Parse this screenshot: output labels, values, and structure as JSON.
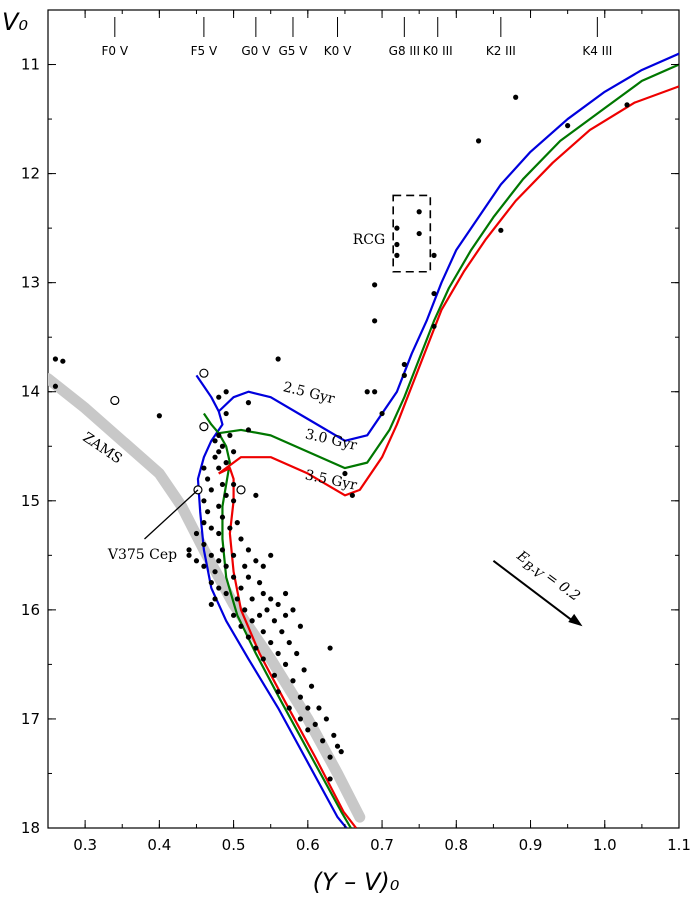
{
  "chart_data": {
    "type": "scatter",
    "xlabel": "(Y – V)₀",
    "ylabel": "V₀",
    "xlim": [
      0.25,
      1.1
    ],
    "ylim": [
      18,
      10.5
    ],
    "y_inverted": true,
    "x_ticks": [
      0.3,
      0.4,
      0.5,
      0.6,
      0.7,
      0.8,
      0.9,
      1.0,
      1.1
    ],
    "x_tick_labels": [
      "0.3",
      "0.4",
      "0.5",
      "0.6",
      "0.7",
      "0.8",
      "0.9",
      "1.0",
      "1.1"
    ],
    "y_ticks": [
      11,
      12,
      13,
      14,
      15,
      16,
      17,
      18
    ],
    "y_tick_labels": [
      "11",
      "12",
      "13",
      "14",
      "15",
      "16",
      "17",
      "18"
    ],
    "grid": false,
    "spectral_types": [
      {
        "label": "F0 V",
        "x": 0.34
      },
      {
        "label": "F5 V",
        "x": 0.46
      },
      {
        "label": "G0 V",
        "x": 0.53
      },
      {
        "label": "G5 V",
        "x": 0.58
      },
      {
        "label": "K0 V",
        "x": 0.64
      },
      {
        "label": "G8 III",
        "x": 0.73
      },
      {
        "label": "K0 III",
        "x": 0.775
      },
      {
        "label": "K2 III",
        "x": 0.86
      },
      {
        "label": "K4 III",
        "x": 0.99
      }
    ],
    "isochrones": [
      {
        "name": "2.5 Gyr",
        "color": "#0000dd",
        "points": [
          [
            0.45,
            13.85
          ],
          [
            0.46,
            13.95
          ],
          [
            0.47,
            14.05
          ],
          [
            0.48,
            14.18
          ],
          [
            0.485,
            14.3
          ],
          [
            0.47,
            14.45
          ],
          [
            0.46,
            14.6
          ],
          [
            0.452,
            14.8
          ],
          [
            0.455,
            15.1
          ],
          [
            0.46,
            15.45
          ],
          [
            0.47,
            15.8
          ],
          [
            0.49,
            16.1
          ],
          [
            0.52,
            16.45
          ],
          [
            0.56,
            16.9
          ],
          [
            0.6,
            17.4
          ],
          [
            0.64,
            17.9
          ],
          [
            0.652,
            18.0
          ]
        ],
        "branch": [
          [
            0.48,
            14.18
          ],
          [
            0.5,
            14.05
          ],
          [
            0.52,
            14.0
          ],
          [
            0.55,
            14.05
          ],
          [
            0.6,
            14.25
          ],
          [
            0.65,
            14.45
          ],
          [
            0.68,
            14.4
          ],
          [
            0.7,
            14.2
          ],
          [
            0.72,
            14.0
          ],
          [
            0.74,
            13.65
          ],
          [
            0.76,
            13.35
          ],
          [
            0.78,
            13.0
          ],
          [
            0.8,
            12.7
          ],
          [
            0.83,
            12.4
          ],
          [
            0.86,
            12.1
          ],
          [
            0.9,
            11.8
          ],
          [
            0.95,
            11.5
          ],
          [
            1.0,
            11.25
          ],
          [
            1.05,
            11.05
          ],
          [
            1.1,
            10.9
          ]
        ]
      },
      {
        "name": "3.0 Gyr",
        "color": "#007700",
        "points": [
          [
            0.46,
            14.2
          ],
          [
            0.47,
            14.3
          ],
          [
            0.48,
            14.38
          ],
          [
            0.49,
            14.5
          ],
          [
            0.495,
            14.65
          ],
          [
            0.49,
            14.85
          ],
          [
            0.485,
            15.05
          ],
          [
            0.485,
            15.35
          ],
          [
            0.49,
            15.7
          ],
          [
            0.505,
            16.05
          ],
          [
            0.53,
            16.4
          ],
          [
            0.565,
            16.85
          ],
          [
            0.605,
            17.35
          ],
          [
            0.645,
            17.85
          ],
          [
            0.658,
            18.0
          ]
        ],
        "branch": [
          [
            0.48,
            14.38
          ],
          [
            0.51,
            14.35
          ],
          [
            0.55,
            14.4
          ],
          [
            0.6,
            14.55
          ],
          [
            0.65,
            14.7
          ],
          [
            0.68,
            14.65
          ],
          [
            0.71,
            14.35
          ],
          [
            0.73,
            14.05
          ],
          [
            0.75,
            13.7
          ],
          [
            0.77,
            13.35
          ],
          [
            0.79,
            13.05
          ],
          [
            0.82,
            12.7
          ],
          [
            0.85,
            12.4
          ],
          [
            0.89,
            12.05
          ],
          [
            0.94,
            11.7
          ],
          [
            1.0,
            11.4
          ],
          [
            1.05,
            11.15
          ],
          [
            1.1,
            11.0
          ]
        ]
      },
      {
        "name": "3.5 Gyr",
        "color": "#ee0000",
        "points": [
          [
            0.48,
            14.75
          ],
          [
            0.495,
            14.7
          ],
          [
            0.5,
            14.8
          ],
          [
            0.5,
            15.0
          ],
          [
            0.495,
            15.3
          ],
          [
            0.5,
            15.65
          ],
          [
            0.51,
            16.0
          ],
          [
            0.535,
            16.4
          ],
          [
            0.57,
            16.85
          ],
          [
            0.61,
            17.35
          ],
          [
            0.648,
            17.85
          ],
          [
            0.665,
            18.0
          ]
        ],
        "branch": [
          [
            0.48,
            14.75
          ],
          [
            0.51,
            14.6
          ],
          [
            0.55,
            14.6
          ],
          [
            0.6,
            14.75
          ],
          [
            0.65,
            14.95
          ],
          [
            0.67,
            14.9
          ],
          [
            0.7,
            14.6
          ],
          [
            0.72,
            14.3
          ],
          [
            0.74,
            13.95
          ],
          [
            0.76,
            13.6
          ],
          [
            0.78,
            13.25
          ],
          [
            0.81,
            12.9
          ],
          [
            0.84,
            12.6
          ],
          [
            0.88,
            12.25
          ],
          [
            0.93,
            11.9
          ],
          [
            0.98,
            11.6
          ],
          [
            1.04,
            11.35
          ],
          [
            1.1,
            11.2
          ]
        ]
      }
    ],
    "zams": [
      [
        0.25,
        13.88
      ],
      [
        0.3,
        14.15
      ],
      [
        0.35,
        14.45
      ],
      [
        0.4,
        14.75
      ],
      [
        0.43,
        15.05
      ],
      [
        0.46,
        15.45
      ],
      [
        0.5,
        15.95
      ],
      [
        0.55,
        16.45
      ],
      [
        0.6,
        17.0
      ],
      [
        0.64,
        17.5
      ],
      [
        0.67,
        17.9
      ]
    ],
    "stars": [
      [
        0.26,
        13.7
      ],
      [
        0.27,
        13.72
      ],
      [
        0.26,
        13.95
      ],
      [
        0.4,
        14.22
      ],
      [
        0.44,
        15.45
      ],
      [
        0.44,
        15.5
      ],
      [
        0.45,
        15.3
      ],
      [
        0.45,
        15.55
      ],
      [
        0.46,
        14.7
      ],
      [
        0.46,
        15.0
      ],
      [
        0.46,
        15.2
      ],
      [
        0.46,
        15.4
      ],
      [
        0.46,
        15.6
      ],
      [
        0.465,
        14.8
      ],
      [
        0.465,
        15.1
      ],
      [
        0.47,
        14.9
      ],
      [
        0.47,
        15.25
      ],
      [
        0.47,
        15.5
      ],
      [
        0.47,
        15.75
      ],
      [
        0.47,
        15.95
      ],
      [
        0.475,
        14.45
      ],
      [
        0.475,
        14.6
      ],
      [
        0.475,
        15.65
      ],
      [
        0.475,
        15.9
      ],
      [
        0.48,
        14.05
      ],
      [
        0.48,
        14.4
      ],
      [
        0.48,
        14.55
      ],
      [
        0.48,
        14.7
      ],
      [
        0.48,
        15.05
      ],
      [
        0.48,
        15.3
      ],
      [
        0.48,
        15.55
      ],
      [
        0.48,
        15.8
      ],
      [
        0.485,
        14.5
      ],
      [
        0.485,
        14.85
      ],
      [
        0.485,
        15.15
      ],
      [
        0.485,
        15.45
      ],
      [
        0.49,
        14.0
      ],
      [
        0.49,
        14.2
      ],
      [
        0.49,
        14.65
      ],
      [
        0.49,
        14.95
      ],
      [
        0.49,
        15.6
      ],
      [
        0.49,
        15.85
      ],
      [
        0.495,
        14.4
      ],
      [
        0.495,
        15.25
      ],
      [
        0.5,
        14.85
      ],
      [
        0.5,
        15.0
      ],
      [
        0.5,
        15.5
      ],
      [
        0.5,
        15.7
      ],
      [
        0.5,
        16.05
      ],
      [
        0.505,
        15.2
      ],
      [
        0.505,
        15.9
      ],
      [
        0.51,
        15.35
      ],
      [
        0.51,
        15.8
      ],
      [
        0.51,
        16.15
      ],
      [
        0.515,
        15.6
      ],
      [
        0.515,
        16.0
      ],
      [
        0.52,
        15.45
      ],
      [
        0.52,
        15.7
      ],
      [
        0.52,
        16.25
      ],
      [
        0.525,
        15.9
      ],
      [
        0.525,
        16.1
      ],
      [
        0.53,
        14.95
      ],
      [
        0.53,
        15.55
      ],
      [
        0.53,
        16.35
      ],
      [
        0.535,
        15.75
      ],
      [
        0.535,
        16.05
      ],
      [
        0.54,
        15.6
      ],
      [
        0.54,
        15.85
      ],
      [
        0.54,
        16.2
      ],
      [
        0.54,
        16.45
      ],
      [
        0.545,
        16.0
      ],
      [
        0.55,
        15.5
      ],
      [
        0.55,
        15.9
      ],
      [
        0.55,
        16.3
      ],
      [
        0.555,
        16.1
      ],
      [
        0.555,
        16.6
      ],
      [
        0.56,
        13.7
      ],
      [
        0.56,
        15.95
      ],
      [
        0.56,
        16.4
      ],
      [
        0.56,
        16.75
      ],
      [
        0.565,
        16.2
      ],
      [
        0.57,
        15.85
      ],
      [
        0.57,
        16.05
      ],
      [
        0.57,
        16.5
      ],
      [
        0.575,
        16.3
      ],
      [
        0.575,
        16.9
      ],
      [
        0.58,
        16.0
      ],
      [
        0.58,
        16.65
      ],
      [
        0.585,
        16.4
      ],
      [
        0.59,
        16.15
      ],
      [
        0.59,
        16.8
      ],
      [
        0.59,
        17.0
      ],
      [
        0.595,
        16.55
      ],
      [
        0.6,
        16.9
      ],
      [
        0.6,
        17.1
      ],
      [
        0.605,
        16.7
      ],
      [
        0.61,
        17.05
      ],
      [
        0.615,
        16.9
      ],
      [
        0.62,
        17.2
      ],
      [
        0.625,
        17.0
      ],
      [
        0.63,
        16.35
      ],
      [
        0.63,
        17.35
      ],
      [
        0.635,
        17.15
      ],
      [
        0.64,
        17.25
      ],
      [
        0.645,
        17.3
      ],
      [
        0.65,
        14.75
      ],
      [
        0.66,
        14.95
      ],
      [
        0.63,
        17.55
      ],
      [
        0.68,
        14.0
      ],
      [
        0.69,
        14.0
      ],
      [
        0.69,
        13.35
      ],
      [
        0.69,
        13.02
      ],
      [
        0.7,
        14.2
      ],
      [
        0.72,
        12.5
      ],
      [
        0.72,
        12.65
      ],
      [
        0.72,
        12.75
      ],
      [
        0.75,
        12.35
      ],
      [
        0.75,
        12.55
      ],
      [
        0.73,
        13.85
      ],
      [
        0.73,
        13.75
      ],
      [
        0.77,
        12.75
      ],
      [
        0.77,
        13.1
      ],
      [
        0.77,
        13.4
      ],
      [
        0.83,
        11.7
      ],
      [
        0.86,
        12.52
      ],
      [
        0.88,
        11.3
      ],
      [
        0.95,
        11.56
      ],
      [
        1.03,
        11.37
      ],
      [
        0.52,
        14.1
      ],
      [
        0.52,
        14.35
      ],
      [
        0.5,
        14.55
      ]
    ],
    "open_stars": [
      [
        0.34,
        14.08
      ],
      [
        0.46,
        13.83
      ],
      [
        0.46,
        14.32
      ],
      [
        0.452,
        14.9
      ],
      [
        0.51,
        14.9
      ]
    ],
    "rcg_box": {
      "x": [
        0.715,
        0.765
      ],
      "y": [
        12.2,
        12.9
      ]
    },
    "annotations": {
      "zams_label": "ZAMS",
      "rcg_label": "RCG",
      "star_label": "V375 Cep",
      "reddening_label": "E_B-V = 0.2",
      "reddening_main": "E",
      "reddening_sub": "B-V",
      "reddening_value": " = 0.2",
      "reddening_vector": {
        "from": [
          0.85,
          15.55
        ],
        "to": [
          0.97,
          16.15
        ]
      },
      "star_pointer_from": [
        0.38,
        15.35
      ],
      "star_pointer_to": [
        0.452,
        14.9
      ]
    }
  }
}
